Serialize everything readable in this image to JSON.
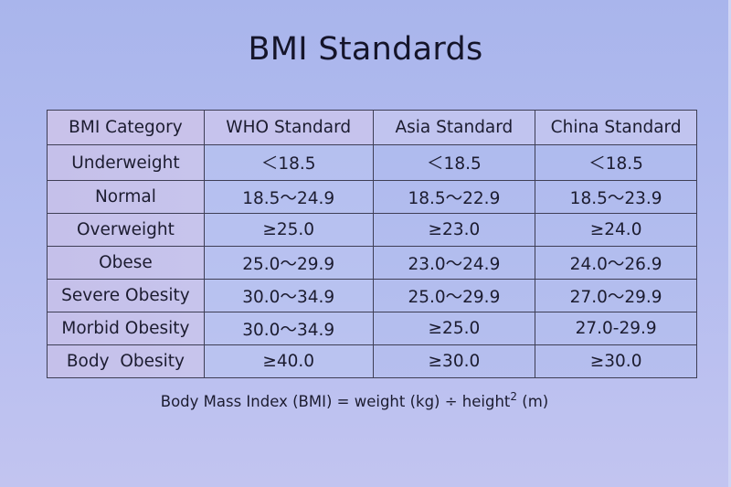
{
  "title": "BMI Standards",
  "table": {
    "headers": [
      "BMI Category",
      "WHO Standard",
      "Asia Standard",
      "China Standard"
    ],
    "rows": [
      {
        "category": "Underweight",
        "who": "＜18.5",
        "asia": "＜18.5",
        "china": "＜18.5"
      },
      {
        "category": "Normal",
        "who": "18.5～24.9",
        "asia": "18.5～22.9",
        "china": "18.5～23.9"
      },
      {
        "category": "Overweight",
        "who": "≥25.0",
        "asia": "≥23.0",
        "china": "≥24.0"
      },
      {
        "category": "Obese",
        "who": "25.0～29.9",
        "asia": "23.0～24.9",
        "china": "24.0～26.9"
      },
      {
        "category": "Severe Obesity",
        "who": "30.0～34.9",
        "asia": "25.0～29.9",
        "china": "27.0～29.9"
      },
      {
        "category": "Morbid Obesity",
        "who": "30.0～34.9",
        "asia": "≥25.0",
        "china": "27.0-29.9"
      },
      {
        "category": "Body  Obesity",
        "who": "≥40.0",
        "asia": "≥30.0",
        "china": "≥30.0"
      }
    ]
  },
  "formula": {
    "text": "Body Mass Index (BMI) = weight (kg) ÷ height",
    "superscript": "2",
    "suffix": " (m)"
  }
}
